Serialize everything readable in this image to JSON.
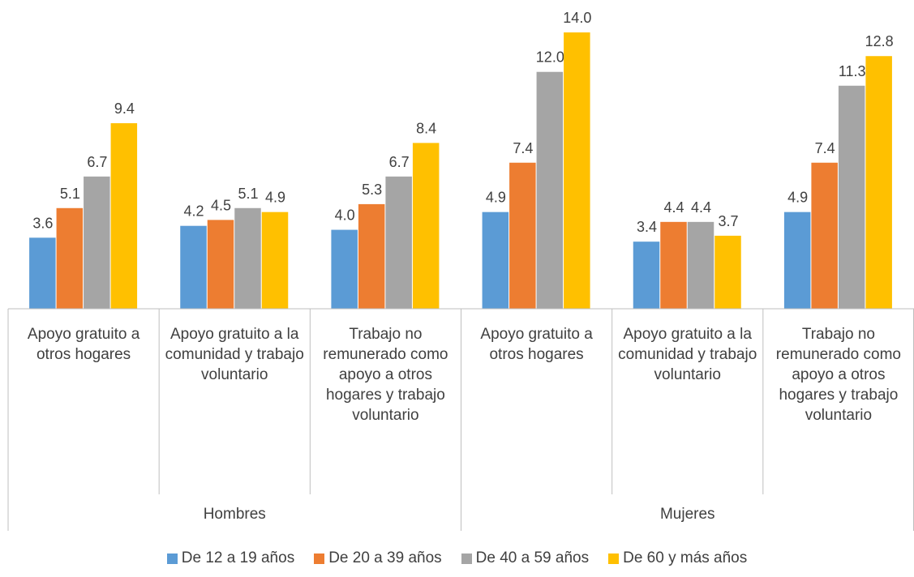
{
  "chart_data": {
    "type": "bar",
    "categories": [
      "Apoyo gratuito a otros hogares",
      "Apoyo gratuito a la comunidad y trabajo voluntario",
      "Trabajo no remunerado como apoyo  a otros hogares y trabajo voluntario",
      "Apoyo gratuito a otros hogares",
      "Apoyo gratuito a la comunidad y trabajo voluntario",
      "Trabajo no remunerado como apoyo  a otros hogares y trabajo voluntario"
    ],
    "groups": [
      "Hombres",
      "Mujeres"
    ],
    "series": [
      {
        "name": "De 12 a 19 años",
        "color": "#5b9bd5",
        "values": [
          3.6,
          4.2,
          4.0,
          4.9,
          3.4,
          4.9
        ],
        "value_labels": [
          "3.6",
          "4.2",
          "4.0",
          "4.9",
          "3.4",
          "4.9"
        ]
      },
      {
        "name": "De 20 a 39 años",
        "color": "#ed7d31",
        "values": [
          5.1,
          4.5,
          5.3,
          7.4,
          4.4,
          7.4
        ],
        "value_labels": [
          "5.1",
          "4.5",
          "5.3",
          "7.4",
          "4.4",
          "7.4"
        ]
      },
      {
        "name": "De 40 a 59 años",
        "color": "#a5a5a5",
        "values": [
          6.7,
          5.1,
          6.7,
          12.0,
          4.4,
          11.3
        ],
        "value_labels": [
          "6.7",
          "5.1",
          "6.7",
          "12.0",
          "4.4",
          "11.3"
        ]
      },
      {
        "name": "De 60 y más años",
        "color": "#ffc000",
        "values": [
          9.4,
          4.9,
          8.4,
          14.0,
          3.7,
          12.8
        ],
        "value_labels": [
          "9.4",
          "4.9",
          "8.4",
          "14.0",
          "3.7",
          "12.8"
        ]
      }
    ],
    "legend": "bottom"
  }
}
